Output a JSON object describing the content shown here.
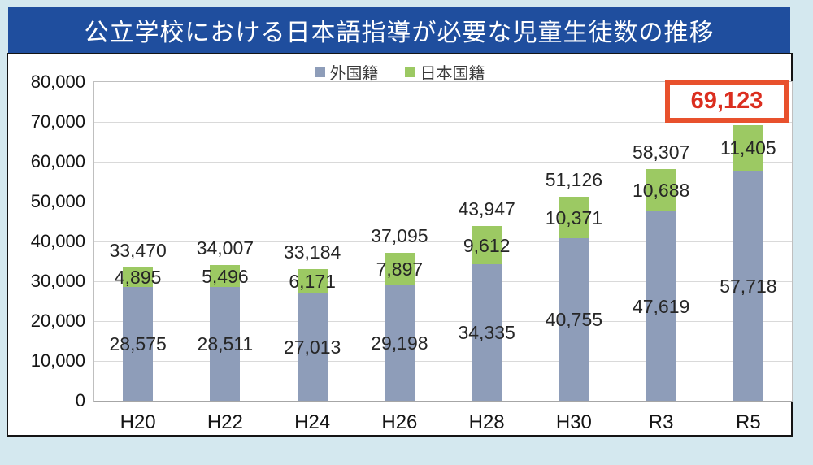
{
  "title": {
    "text": "公立学校における日本語指導が必要な児童生徒数の推移"
  },
  "colors": {
    "page_background": "#D4E8EF",
    "banner_background": "#1F4E9E",
    "banner_text": "#FFFFFF",
    "panel_border": "#141414",
    "gridline": "#D9D9D9",
    "axis_line": "#A6A6A6",
    "label_text": "#262626"
  },
  "chart_data": {
    "type": "bar",
    "stacked": true,
    "title": "公立学校における日本語指導が必要な児童生徒数の推移",
    "categories": [
      "H20",
      "H22",
      "H24",
      "H26",
      "H28",
      "H30",
      "R3",
      "R5"
    ],
    "series": [
      {
        "name": "外国籍",
        "key": "foreign-nationality",
        "color": "#8E9DB9",
        "values": [
          28575,
          28511,
          27013,
          29198,
          34335,
          40755,
          47619,
          57718
        ],
        "value_labels": [
          "28,575",
          "28,511",
          "27,013",
          "29,198",
          "34,335",
          "40,755",
          "47,619",
          "57,718"
        ]
      },
      {
        "name": "日本国籍",
        "key": "japanese-nationality",
        "color": "#9CC963",
        "values": [
          4895,
          5496,
          6171,
          7897,
          9612,
          10371,
          10688,
          11405
        ],
        "value_labels": [
          "4,895",
          "5,496",
          "6,171",
          "7,897",
          "9,612",
          "10,371",
          "10,688",
          "11,405"
        ]
      }
    ],
    "totals": [
      33470,
      34007,
      33184,
      37095,
      43947,
      51126,
      58307,
      69123
    ],
    "total_labels": [
      "33,470",
      "34,007",
      "33,184",
      "37,095",
      "43,947",
      "51,126",
      "58,307",
      "69,123"
    ],
    "highlight": {
      "category": "R5",
      "category_index": 7,
      "value": 69123,
      "value_label": "69,123",
      "border_color": "#E8512D",
      "text_color": "#DB2E1F"
    },
    "ylim": [
      0,
      80000
    ],
    "ytick_interval": 10000,
    "yticks": [
      "80,000",
      "70,000",
      "60,000",
      "50,000",
      "40,000",
      "30,000",
      "20,000",
      "10,000",
      "0"
    ],
    "grid": true,
    "legend_position": "top"
  }
}
